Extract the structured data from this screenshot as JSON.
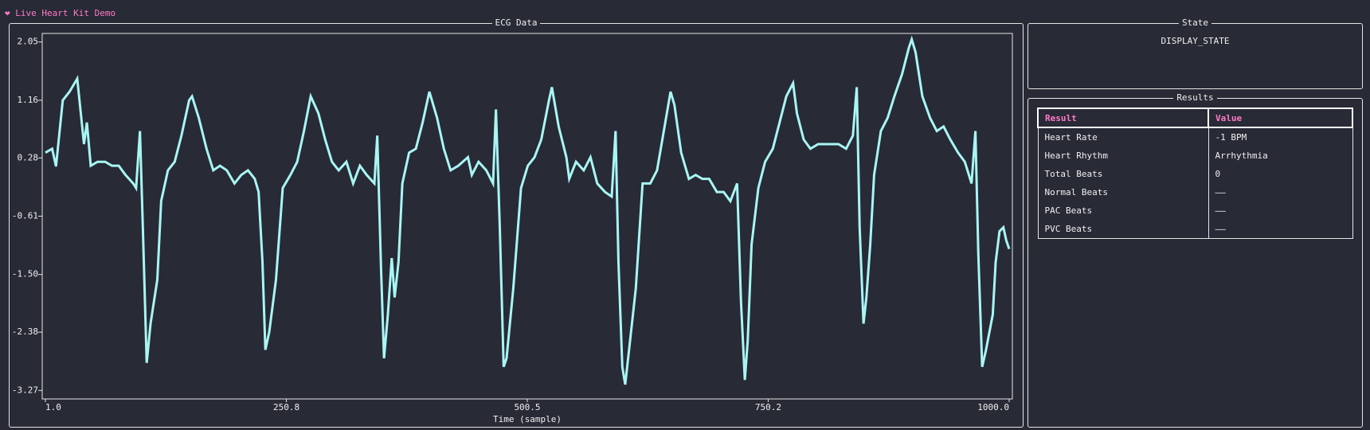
{
  "header": {
    "title": "❤ Live Heart Kit Demo"
  },
  "chart_data": {
    "type": "line",
    "title": "ECG Data",
    "x_label": "Time (sample)",
    "x": [
      1,
      8,
      12,
      19,
      26,
      34,
      41,
      44,
      48,
      55,
      63,
      70,
      77,
      84,
      92,
      95,
      99,
      102,
      106,
      110,
      117,
      121,
      128,
      135,
      142,
      150,
      153,
      160,
      168,
      175,
      182,
      189,
      197,
      204,
      211,
      218,
      222,
      226,
      229,
      233,
      240,
      244,
      247,
      255,
      262,
      269,
      276,
      284,
      291,
      298,
      305,
      313,
      320,
      327,
      334,
      342,
      345,
      349,
      352,
      356,
      360,
      363,
      367,
      371,
      378,
      385,
      392,
      399,
      407,
      414,
      421,
      429,
      439,
      443,
      450,
      458,
      465,
      468,
      472,
      476,
      479,
      486,
      494,
      501,
      508,
      515,
      523,
      526,
      533,
      541,
      544,
      551,
      559,
      566,
      573,
      581,
      588,
      592,
      595,
      599,
      602,
      606,
      613,
      620,
      628,
      635,
      642,
      649,
      653,
      660,
      668,
      675,
      682,
      689,
      697,
      704,
      711,
      718,
      722,
      726,
      729,
      733,
      740,
      747,
      755,
      762,
      769,
      776,
      780,
      787,
      794,
      802,
      809,
      816,
      823,
      831,
      838,
      842,
      845,
      849,
      852,
      856,
      860,
      867,
      874,
      881,
      889,
      896,
      899,
      903,
      910,
      918,
      925,
      932,
      939,
      947,
      954,
      961,
      965,
      968,
      972,
      976,
      983,
      986,
      990,
      994,
      997,
      1000
    ],
    "series": [
      {
        "color": "#a8f6f4",
        "values": [
          0.36,
          0.42,
          0.15,
          1.16,
          1.29,
          1.49,
          0.49,
          0.82,
          0.16,
          0.22,
          0.22,
          0.16,
          0.16,
          0.02,
          -0.11,
          -0.18,
          0.69,
          -0.78,
          -2.85,
          -2.25,
          -1.58,
          -0.38,
          0.09,
          0.22,
          0.62,
          1.16,
          1.22,
          0.89,
          0.42,
          0.09,
          0.16,
          0.09,
          -0.11,
          0.02,
          0.09,
          -0.04,
          -0.24,
          -1.31,
          -2.65,
          -2.38,
          -1.58,
          -0.78,
          -0.18,
          0.02,
          0.22,
          0.69,
          1.22,
          0.96,
          0.56,
          0.22,
          0.09,
          0.22,
          -0.11,
          0.16,
          0.02,
          -0.11,
          0.62,
          -1.45,
          -2.78,
          -2.11,
          -1.25,
          -1.85,
          -1.31,
          -0.11,
          0.36,
          0.42,
          0.82,
          1.29,
          0.89,
          0.42,
          0.09,
          0.16,
          0.29,
          0.02,
          0.22,
          0.09,
          -0.11,
          1.02,
          -0.78,
          -2.91,
          -2.78,
          -1.71,
          -0.18,
          0.16,
          0.29,
          0.56,
          1.16,
          1.36,
          0.76,
          0.29,
          -0.04,
          0.22,
          0.09,
          0.29,
          -0.11,
          -0.24,
          -0.31,
          0.69,
          -1.31,
          -2.91,
          -3.18,
          -2.65,
          -1.71,
          -0.11,
          -0.11,
          0.09,
          0.69,
          1.29,
          1.09,
          0.36,
          -0.04,
          0.02,
          -0.04,
          -0.04,
          -0.24,
          -0.24,
          -0.38,
          -0.11,
          -1.91,
          -3.11,
          -2.51,
          -1.04,
          -0.18,
          0.22,
          0.42,
          0.82,
          1.22,
          1.42,
          0.96,
          0.56,
          0.42,
          0.49,
          0.49,
          0.49,
          0.49,
          0.42,
          0.62,
          1.36,
          -0.78,
          -2.25,
          -1.85,
          -1.04,
          0.02,
          0.69,
          0.89,
          1.22,
          1.56,
          1.96,
          2.09,
          1.89,
          1.22,
          0.89,
          0.69,
          0.76,
          0.56,
          0.36,
          0.22,
          -0.11,
          0.69,
          -1.18,
          -2.91,
          -2.65,
          -2.11,
          -1.31,
          -0.84,
          -0.78,
          -0.98,
          -1.11
        ]
      }
    ],
    "xlim": [
      1,
      1000
    ],
    "ylim": [
      -3.4,
      2.18
    ],
    "xticks": [
      {
        "value": 1,
        "label": "1.0"
      },
      250.8,
      500.5,
      750.2,
      {
        "value": 1000,
        "label": "1000.0"
      }
    ],
    "yticks": [
      2.05,
      1.16,
      0.28,
      -0.61,
      {
        "value": -1.5,
        "label": "-1.50"
      },
      -2.38,
      -3.27
    ]
  },
  "state": {
    "title": "State",
    "value": "DISPLAY_STATE"
  },
  "results": {
    "title": "Results",
    "table": {
      "header": [
        "Result",
        "Value"
      ],
      "rows": [
        [
          "Heart Rate",
          "-1 BPM"
        ],
        [
          "Heart Rhythm",
          "Arrhythmia"
        ],
        [
          "Total Beats",
          "0"
        ],
        [
          "Normal Beats",
          "——"
        ],
        [
          "PAC Beats",
          "——"
        ],
        [
          "PVC Beats",
          "——"
        ]
      ]
    }
  }
}
